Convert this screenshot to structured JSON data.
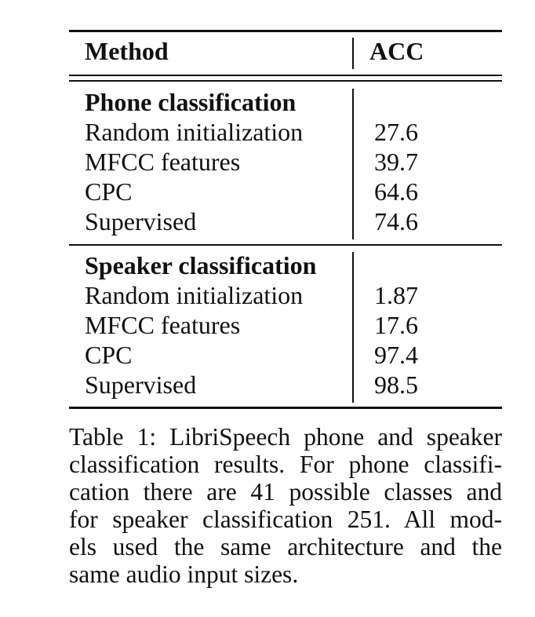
{
  "table": {
    "header": {
      "method": "Method",
      "acc": "ACC"
    },
    "sections": [
      {
        "title": "Phone classification",
        "rows": [
          {
            "method": "Random initialization",
            "acc": "27.6"
          },
          {
            "method": "MFCC features",
            "acc": "39.7"
          },
          {
            "method": "CPC",
            "acc": "64.6"
          },
          {
            "method": "Supervised",
            "acc": "74.6"
          }
        ]
      },
      {
        "title": "Speaker classification",
        "rows": [
          {
            "method": "Random initialization",
            "acc": "1.87"
          },
          {
            "method": "MFCC features",
            "acc": "17.6"
          },
          {
            "method": "CPC",
            "acc": "97.4"
          },
          {
            "method": "Supervised",
            "acc": "98.5"
          }
        ]
      }
    ]
  },
  "caption": {
    "lines": [
      "Table 1: LibriSpeech phone and speaker",
      "classification results. For phone classifi-",
      "cation there are 41 possible classes and",
      "for speaker classification 251. All mod-",
      "els used the same architecture and the",
      "same audio input sizes."
    ]
  }
}
